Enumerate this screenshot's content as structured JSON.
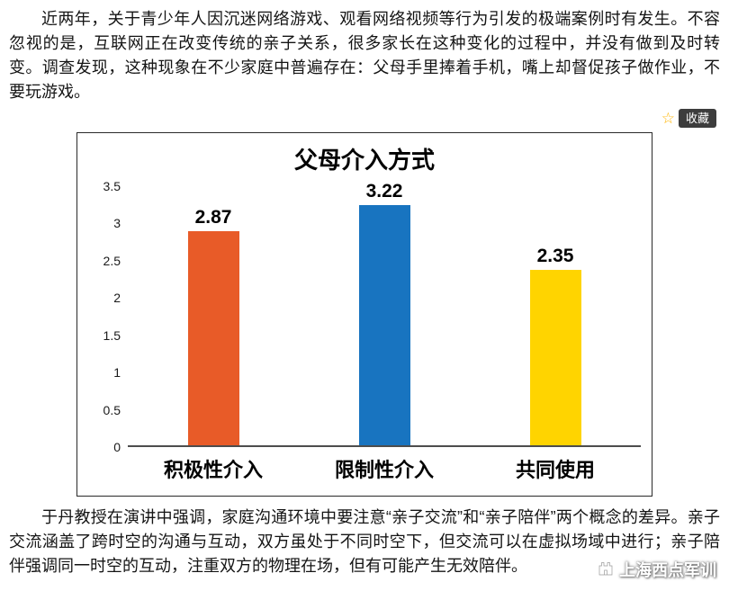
{
  "article": {
    "paragraph1": "近两年，关于青少年人因沉迷网络游戏、观看网络视频等行为引发的极端案例时有发生。不容忽视的是，互联网正在改变传统的亲子关系，很多家长在这种变化的过程中，并没有做到及时转变。调查发现，这种现象在不少家庭中普遍存在：父母手里捧着手机，嘴上却督促孩子做作业，不要玩游戏。",
    "favorite_label": "收藏",
    "paragraph2": "于丹教授在演讲中强调，家庭沟通环境中要注意“亲子交流”和“亲子陪伴”两个概念的差异。亲子交流涵盖了跨时空的沟通与互动，双方虽处于不同时空下，但交流可以在虚拟场域中进行；亲子陪伴强调同一时空的互动，注重双方的物理在场，但有可能产生无效陪伴。",
    "watermark_text": "上海西点军训"
  },
  "colors": {
    "star": "#ffb400",
    "badge_bg": "#3d3d3d"
  },
  "chart_data": {
    "type": "bar",
    "title": "父母介入方式",
    "categories": [
      "积极性介入",
      "限制性介入",
      "共同使用"
    ],
    "values": [
      2.87,
      3.22,
      2.35
    ],
    "value_labels": [
      "2.87",
      "3.22",
      "2.35"
    ],
    "bar_colors": [
      "#e85b28",
      "#1874c0",
      "#ffd400"
    ],
    "xlabel": "",
    "ylabel": "",
    "ylim": [
      0,
      3.5
    ],
    "yticks": [
      0,
      0.5,
      1,
      1.5,
      2,
      2.5,
      3,
      3.5
    ],
    "grid": false,
    "legend": "none"
  }
}
